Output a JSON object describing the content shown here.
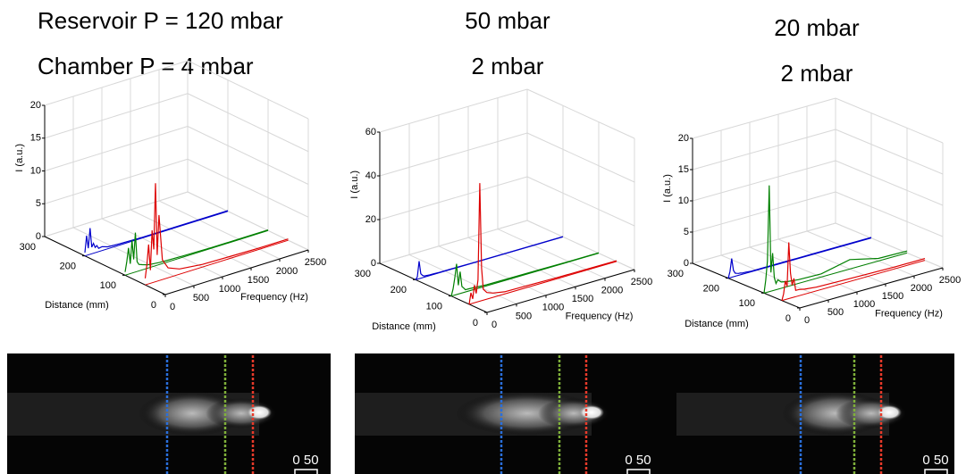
{
  "chart_data": [
    {
      "type": "waterfall3d",
      "title": "Reservoir P = 120 mbar",
      "subtitle": "Chamber P = 4 mbar",
      "xlabel": "Frequency (Hz)",
      "ylabel": "Distance (mm)",
      "zlabel": "I (a.u.)",
      "xlim": [
        0,
        2500
      ],
      "xticks": [
        0,
        500,
        1000,
        1500,
        2000,
        2500
      ],
      "ylim": [
        0,
        300
      ],
      "yticks": [
        0,
        100,
        200,
        300
      ],
      "zlim": [
        0,
        20
      ],
      "zticks": [
        0,
        5,
        10,
        15,
        20
      ],
      "grid": true,
      "x": [
        0,
        30,
        60,
        90,
        120,
        150,
        180,
        210,
        240,
        300,
        400,
        600,
        1000,
        1500,
        2000,
        2500
      ],
      "series": [
        {
          "color": "#0000cc",
          "distance": 200,
          "values": [
            0.5,
            3,
            1,
            4,
            1,
            1.5,
            0.8,
            1,
            0.5,
            0.6,
            0.3,
            0.2,
            0.1,
            0.1,
            0.1,
            0.1
          ]
        },
        {
          "color": "#008000",
          "distance": 100,
          "values": [
            0.5,
            2,
            4,
            1.5,
            5,
            2,
            6,
            1.5,
            1,
            0.8,
            0.5,
            0.3,
            0.2,
            0.1,
            0.1,
            0.1
          ]
        },
        {
          "color": "#dd0000",
          "distance": 50,
          "values": [
            1,
            3,
            6,
            2,
            8,
            5,
            15,
            4,
            10,
            3,
            1.5,
            0.8,
            0.4,
            0.3,
            0.2,
            0.2
          ]
        }
      ]
    },
    {
      "type": "waterfall3d",
      "title": "50 mbar",
      "subtitle": "2 mbar",
      "xlabel": "Frequency (Hz)",
      "ylabel": "Distance (mm)",
      "zlabel": "I (a.u.)",
      "xlim": [
        0,
        2500
      ],
      "xticks": [
        0,
        500,
        1000,
        1500,
        2000,
        2500
      ],
      "ylim": [
        0,
        300
      ],
      "yticks": [
        0,
        100,
        200,
        300
      ],
      "zlim": [
        0,
        60
      ],
      "zticks": [
        0,
        20,
        40,
        60
      ],
      "grid": true,
      "x": [
        0,
        30,
        60,
        90,
        120,
        150,
        180,
        210,
        240,
        300,
        400,
        600,
        1000,
        1500,
        2000,
        2500
      ],
      "series": [
        {
          "color": "#0000cc",
          "distance": 200,
          "values": [
            0,
            1,
            8,
            2,
            1,
            0.5,
            0.5,
            0.4,
            0.3,
            0.3,
            0.2,
            0.2,
            0.1,
            0.1,
            0.1,
            0.1
          ]
        },
        {
          "color": "#008000",
          "distance": 100,
          "values": [
            0,
            3,
            8,
            14,
            4,
            10,
            3,
            2,
            1,
            1,
            0.8,
            0.5,
            0.4,
            0.3,
            0.2,
            0.2
          ]
        },
        {
          "color": "#dd0000",
          "distance": 50,
          "values": [
            0,
            5,
            2,
            8,
            4,
            10,
            54,
            15,
            5,
            3,
            2,
            1,
            0.8,
            0.5,
            0.4,
            0.3
          ]
        }
      ]
    },
    {
      "type": "waterfall3d",
      "title": "20 mbar",
      "subtitle": "2 mbar",
      "xlabel": "Frequency (Hz)",
      "ylabel": "Distance (mm)",
      "zlabel": "I (a.u.)",
      "xlim": [
        0,
        2500
      ],
      "xticks": [
        0,
        500,
        1000,
        1500,
        2000,
        2500
      ],
      "ylim": [
        0,
        300
      ],
      "yticks": [
        0,
        100,
        200,
        300
      ],
      "zlim": [
        0,
        20
      ],
      "zticks": [
        0,
        5,
        10,
        15,
        20
      ],
      "grid": true,
      "x": [
        0,
        30,
        60,
        90,
        120,
        150,
        180,
        210,
        240,
        300,
        400,
        600,
        1000,
        1500,
        2000,
        2500
      ],
      "series": [
        {
          "color": "#0000cc",
          "distance": 200,
          "values": [
            0,
            1,
            3,
            1,
            0.5,
            0.4,
            0.3,
            0.3,
            0.2,
            0.2,
            0.1,
            0.1,
            0.1,
            0.1,
            0.1,
            0.1
          ]
        },
        {
          "color": "#008000",
          "distance": 100,
          "values": [
            0,
            2,
            5,
            17,
            3,
            6,
            2,
            1,
            1.5,
            1,
            0.8,
            0.6,
            0.5,
            1.5,
            0.4,
            0.3
          ]
        },
        {
          "color": "#dd0000",
          "distance": 50,
          "values": [
            0,
            1,
            3,
            2,
            9,
            4,
            2,
            3,
            1,
            1,
            0.8,
            0.6,
            0.5,
            0.4,
            0.3,
            0.3
          ]
        }
      ]
    }
  ],
  "images": [
    {
      "scale_label": "0 50"
    },
    {
      "scale_label": "0 50"
    },
    {
      "scale_label": "0 50"
    }
  ]
}
